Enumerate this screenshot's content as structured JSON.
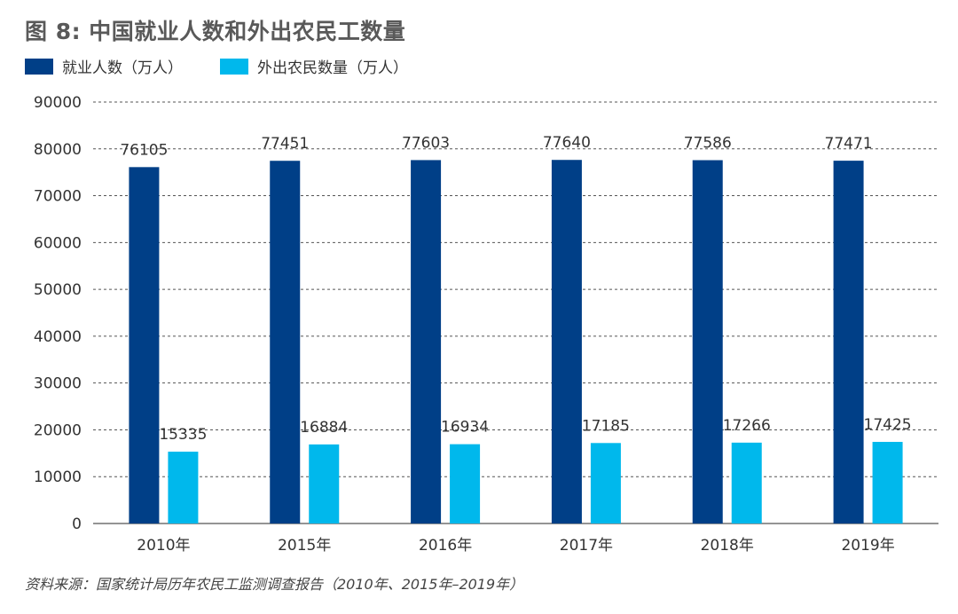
{
  "title": "图 8: 中国就业人数和外出农民工数量",
  "source": "资料来源：国家统计局历年农民工监测调查报告（2010年、2015年–2019年）",
  "colors": {
    "employment": "#003f87",
    "migrant": "#00b8ec"
  },
  "chart_data": {
    "type": "bar",
    "title": "图 8: 中国就业人数和外出农民工数量",
    "xlabel": "",
    "ylabel": "",
    "categories": [
      "2010年",
      "2015年",
      "2016年",
      "2017年",
      "2018年",
      "2019年"
    ],
    "series": [
      {
        "name": "就业人数（万人）",
        "values": [
          76105,
          77451,
          77603,
          77640,
          77586,
          77471
        ]
      },
      {
        "name": "外出农民数量（万人）",
        "values": [
          15335,
          16884,
          16934,
          17185,
          17266,
          17425
        ]
      }
    ],
    "ylim": [
      0,
      90000
    ],
    "yticks": [
      0,
      10000,
      20000,
      30000,
      40000,
      50000,
      60000,
      70000,
      80000,
      90000
    ],
    "grid": "horizontal-dashed",
    "legend_position": "top-left"
  }
}
